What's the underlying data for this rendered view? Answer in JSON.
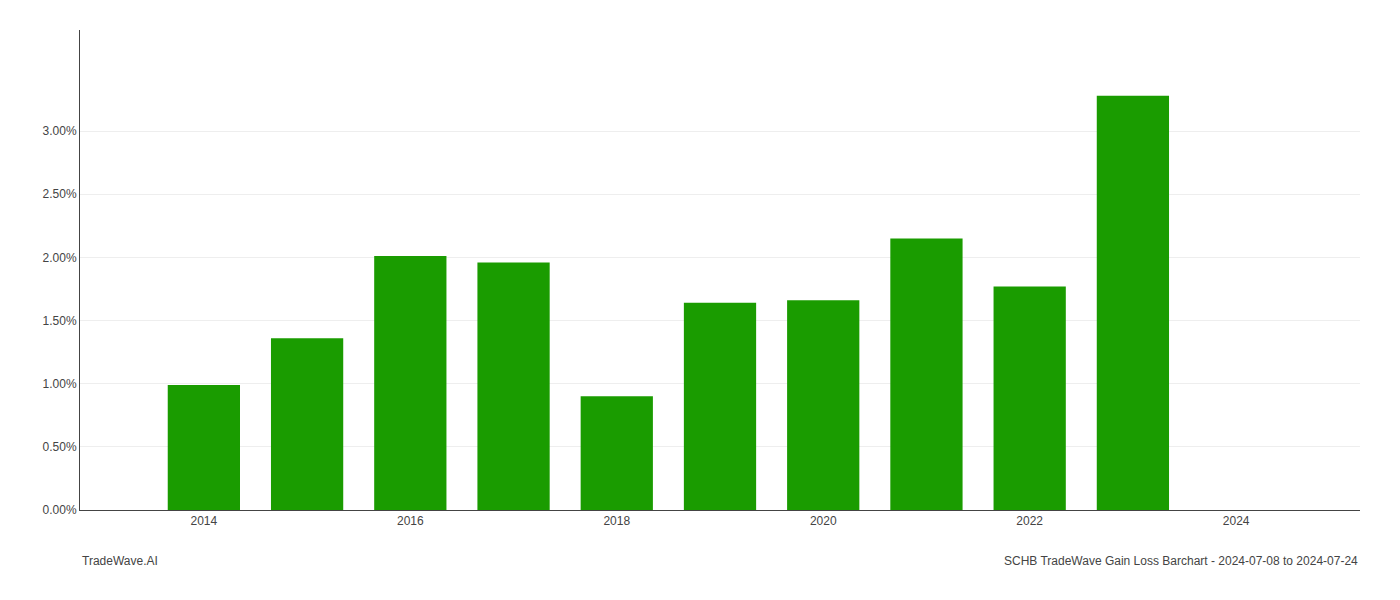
{
  "chart_data": {
    "type": "bar",
    "x": [
      2014,
      2015,
      2016,
      2017,
      2018,
      2019,
      2020,
      2021,
      2022,
      2023
    ],
    "values": [
      0.0099,
      0.0136,
      0.0201,
      0.0196,
      0.009,
      0.0164,
      0.0166,
      0.0215,
      0.0177,
      0.0328
    ],
    "color": "#1a9c00",
    "xlim": [
      2012.8,
      2025.2
    ],
    "xticks": [
      2014,
      2016,
      2018,
      2020,
      2022,
      2024
    ],
    "ylim": [
      0,
      0.038
    ],
    "yticks": [
      {
        "value": 0.0,
        "label": "0.00%"
      },
      {
        "value": 0.005,
        "label": "0.50%"
      },
      {
        "value": 0.01,
        "label": "1.00%"
      },
      {
        "value": 0.015,
        "label": "1.50%"
      },
      {
        "value": 0.02,
        "label": "2.00%"
      },
      {
        "value": 0.025,
        "label": "2.50%"
      },
      {
        "value": 0.03,
        "label": "3.00%"
      }
    ],
    "grid": true,
    "annotations": [
      "TradeWave.AI",
      "SCHB TradeWave Gain Loss Barchart - 2024-07-08 to 2024-07-24"
    ]
  }
}
